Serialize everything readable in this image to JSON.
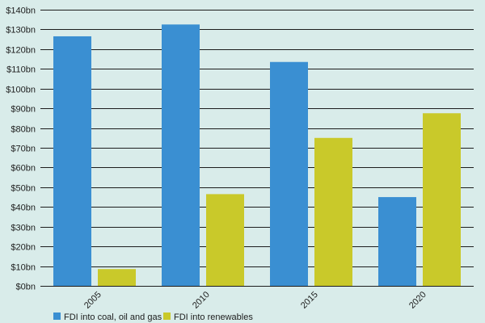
{
  "chart_data": {
    "type": "bar",
    "title": "",
    "xlabel": "",
    "ylabel": "",
    "categories": [
      "2005",
      "2010",
      "2015",
      "2020"
    ],
    "series": [
      {
        "name": "FDI into coal, oil and gas",
        "values": [
          126.5,
          132.5,
          113.5,
          45
        ],
        "color": "#3a8fd2"
      },
      {
        "name": "FDI into renewables",
        "values": [
          8.5,
          46.5,
          75,
          87.5
        ],
        "color": "#c9c92a"
      }
    ],
    "ylim": [
      0,
      140
    ],
    "yticks": [
      0,
      10,
      20,
      30,
      40,
      50,
      60,
      70,
      80,
      90,
      100,
      110,
      120,
      130,
      140
    ],
    "ytick_labels": [
      "$0bn",
      "$10bn",
      "$20bn",
      "$30bn",
      "$40bn",
      "$50bn",
      "$60bn",
      "$70bn",
      "$80bn",
      "$90bn",
      "$100bn",
      "$110bn",
      "$120bn",
      "$130bn",
      "$140bn"
    ],
    "grid": true,
    "legend_position": "bottom-left"
  }
}
